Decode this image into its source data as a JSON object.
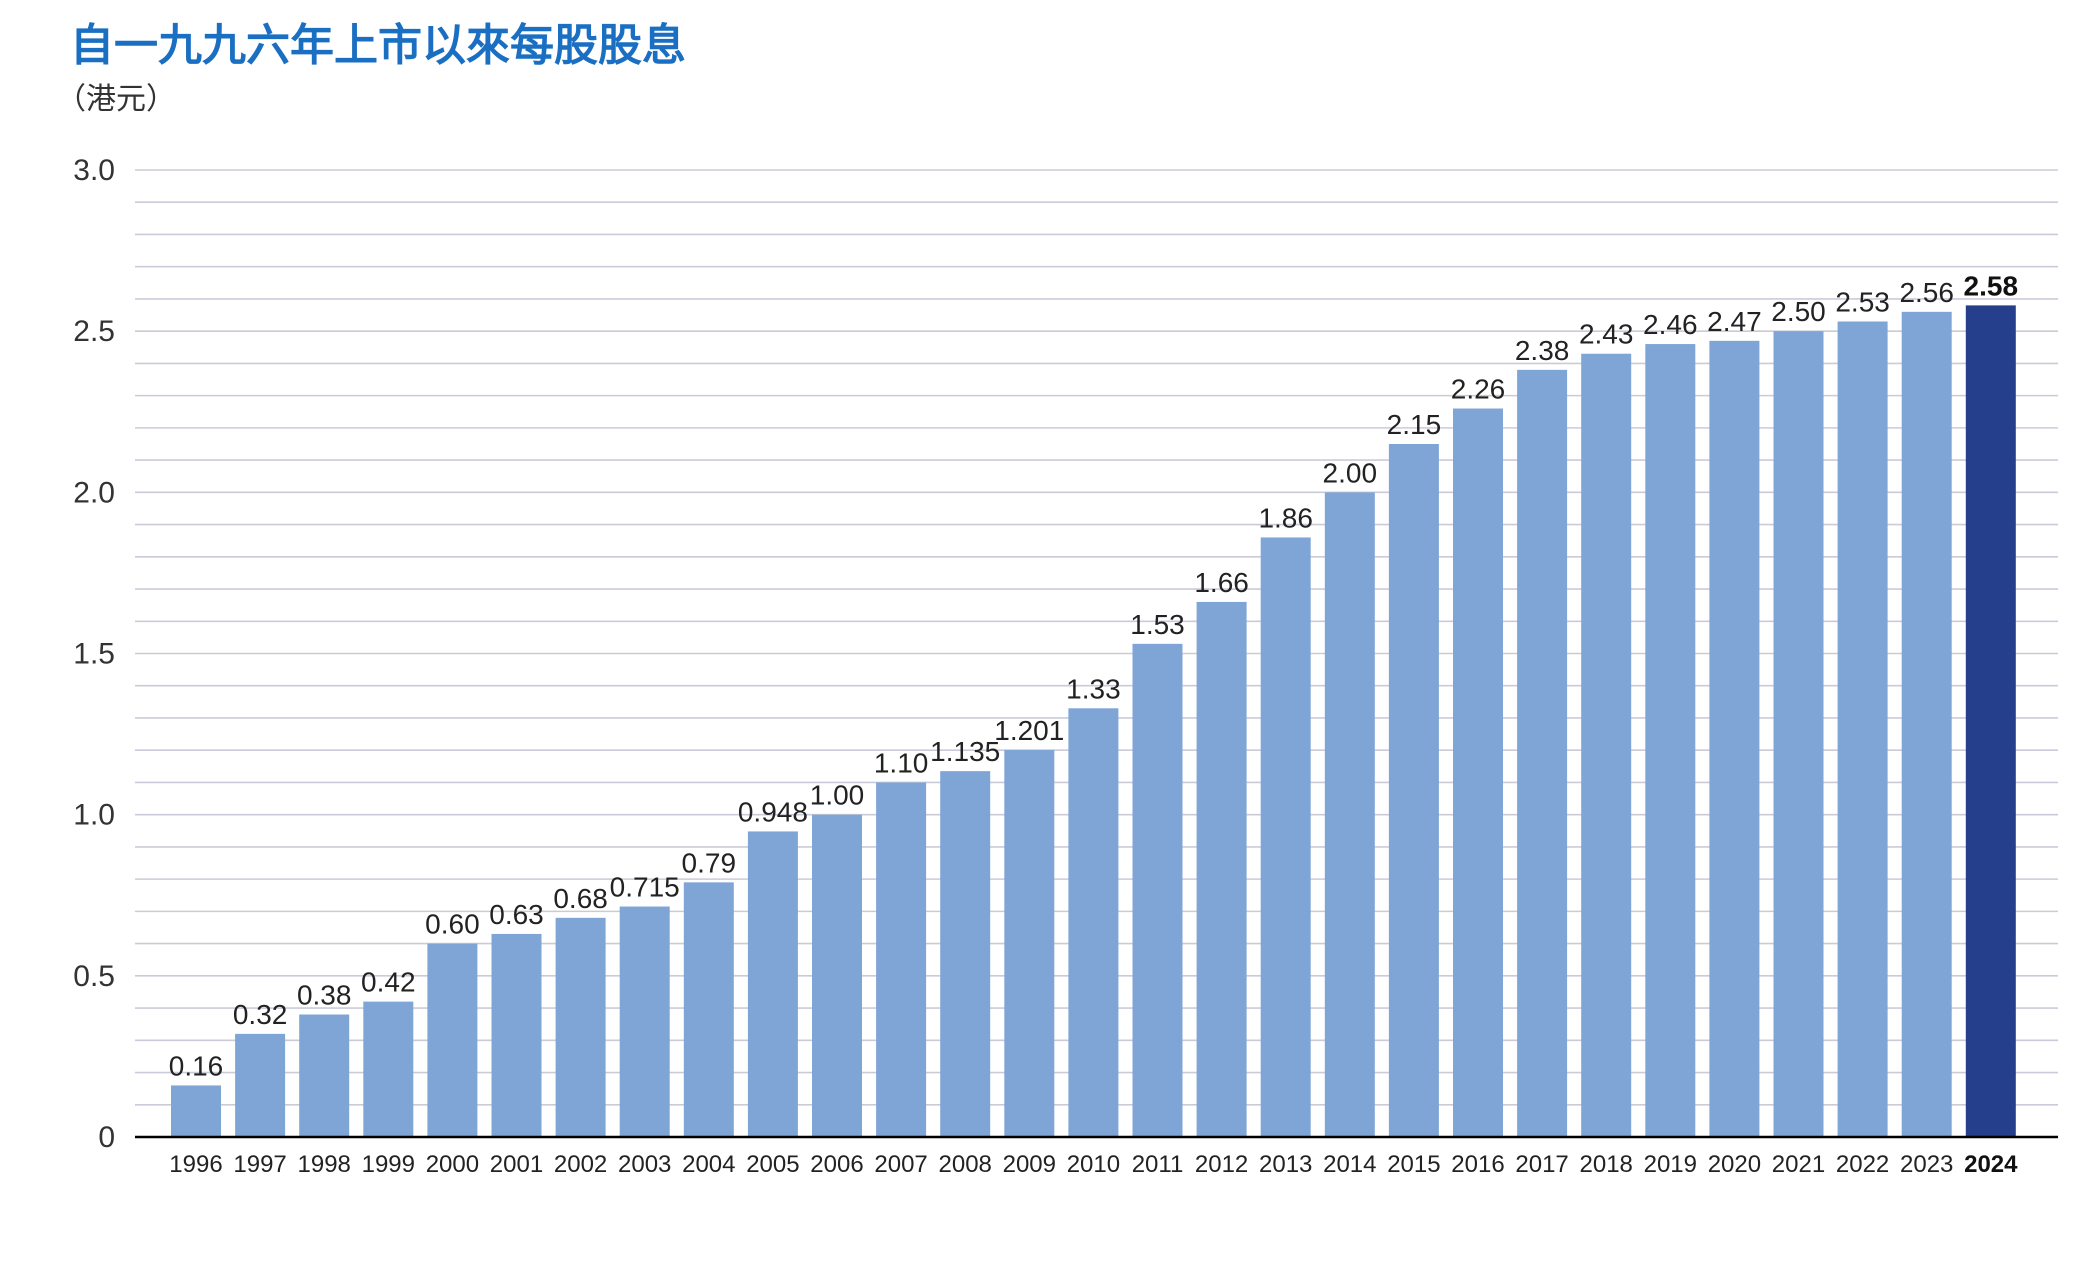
{
  "header": {
    "title": "自一九九六年上市以來每股股息",
    "unit": "（港元）"
  },
  "colors": {
    "title": "#1b6fc2",
    "bar": "#7fa5d6",
    "highlight_bar": "#253f8c",
    "grid": "#c9ccd8",
    "axis": "#000000"
  },
  "chart_data": {
    "type": "bar",
    "title": "自一九九六年上市以來每股股息",
    "ylabel": "（港元）",
    "xlabel": "",
    "ylim": [
      0,
      3.0
    ],
    "yticks": [
      {
        "value": 0,
        "label": "0"
      },
      {
        "value": 0.5,
        "label": "0.5"
      },
      {
        "value": 1.0,
        "label": "1.0"
      },
      {
        "value": 1.5,
        "label": "1.5"
      },
      {
        "value": 2.0,
        "label": "2.0"
      },
      {
        "value": 2.5,
        "label": "2.5"
      },
      {
        "value": 3.0,
        "label": "3.0"
      }
    ],
    "minor_grid_step": 0.1,
    "grid": true,
    "highlight_category": "2024",
    "categories": [
      "1996",
      "1997",
      "1998",
      "1999",
      "2000",
      "2001",
      "2002",
      "2003",
      "2004",
      "2005",
      "2006",
      "2007",
      "2008",
      "2009",
      "2010",
      "2011",
      "2012",
      "2013",
      "2014",
      "2015",
      "2016",
      "2017",
      "2018",
      "2019",
      "2020",
      "2021",
      "2022",
      "2023",
      "2024"
    ],
    "values": [
      0.16,
      0.32,
      0.38,
      0.42,
      0.6,
      0.63,
      0.68,
      0.715,
      0.79,
      0.948,
      1.0,
      1.1,
      1.135,
      1.201,
      1.33,
      1.53,
      1.66,
      1.86,
      2.0,
      2.15,
      2.26,
      2.38,
      2.43,
      2.46,
      2.47,
      2.5,
      2.53,
      2.56,
      2.58
    ],
    "labels": [
      "0.16",
      "0.32",
      "0.38",
      "0.42",
      "0.60",
      "0.63",
      "0.68",
      "0.715",
      "0.79",
      "0.948",
      "1.00",
      "1.10",
      "1.135",
      "1.201",
      "1.33",
      "1.53",
      "1.66",
      "1.86",
      "2.00",
      "2.15",
      "2.26",
      "2.38",
      "2.43",
      "2.46",
      "2.47",
      "2.50",
      "2.53",
      "2.56",
      "2.58"
    ]
  }
}
